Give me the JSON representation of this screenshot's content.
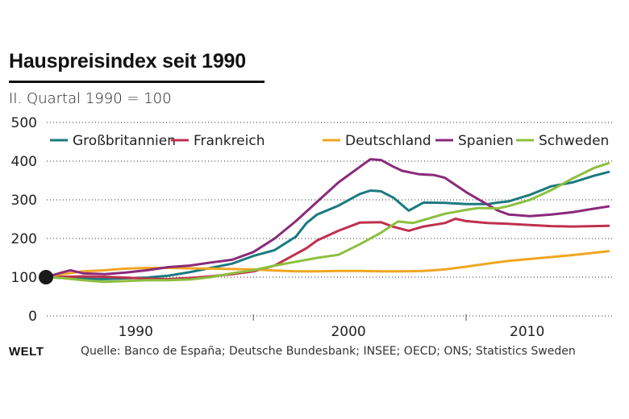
{
  "header": {
    "title": "Hauspreisindex seit 1990",
    "subtitle": "II. Quartal 1990 = 100"
  },
  "footer": {
    "logo": "WELT",
    "source": "Quelle: Banco de España; Deutsche Bundesbank; INSEE; OECD; ONS; Statistics Sweden"
  },
  "chart_data": {
    "type": "line",
    "title": "Hauspreisindex seit 1990",
    "subtitle": "II. Quartal 1990 = 100",
    "xlabel": "",
    "ylabel": "",
    "xlim": [
      1990.25,
      2016.9
    ],
    "ylim": [
      0,
      500
    ],
    "yticks": [
      0,
      100,
      200,
      300,
      400,
      500
    ],
    "ytick_labels": [
      "0",
      "100",
      "200",
      "300",
      "400",
      "500"
    ],
    "xtick_positions": [
      2000,
      2010
    ],
    "xtick_labels": [
      {
        "label": "1990",
        "at": 1995.0
      },
      {
        "label": "2000",
        "at": 2005.0
      },
      {
        "label": "2010",
        "at": 2013.4
      }
    ],
    "grid": "horizontal-dotted",
    "legend": "top",
    "base_point": {
      "x": 1990.25,
      "y": 100
    },
    "series": [
      {
        "name": "Großbritannien",
        "color": "#1a7a80",
        "points": [
          [
            1990.25,
            100
          ],
          [
            1991,
            98
          ],
          [
            1992,
            96
          ],
          [
            1993,
            95
          ],
          [
            1994,
            97
          ],
          [
            1995,
            99
          ],
          [
            1996,
            104
          ],
          [
            1997,
            113
          ],
          [
            1998,
            124
          ],
          [
            1999,
            135
          ],
          [
            2000,
            155
          ],
          [
            2001,
            170
          ],
          [
            2002,
            205
          ],
          [
            2002.5,
            240
          ],
          [
            2003,
            262
          ],
          [
            2004,
            285
          ],
          [
            2005,
            315
          ],
          [
            2005.5,
            324
          ],
          [
            2006,
            322
          ],
          [
            2006.6,
            305
          ],
          [
            2007.3,
            272
          ],
          [
            2008,
            293
          ],
          [
            2009,
            292
          ],
          [
            2010,
            289
          ],
          [
            2011,
            289
          ],
          [
            2011.5,
            293
          ],
          [
            2012,
            296
          ],
          [
            2013,
            313
          ],
          [
            2014,
            335
          ],
          [
            2015,
            345
          ],
          [
            2016,
            362
          ],
          [
            2016.7,
            372
          ]
        ]
      },
      {
        "name": "Frankreich",
        "color": "#c0304e",
        "points": [
          [
            1990.25,
            100
          ],
          [
            1991,
            101
          ],
          [
            1992,
            102
          ],
          [
            1993,
            101
          ],
          [
            1994,
            99
          ],
          [
            1995,
            96
          ],
          [
            1996,
            95
          ],
          [
            1997,
            98
          ],
          [
            1998,
            102
          ],
          [
            1999,
            108
          ],
          [
            2000,
            115
          ],
          [
            2001,
            130
          ],
          [
            2002,
            160
          ],
          [
            2002.5,
            175
          ],
          [
            2003,
            195
          ],
          [
            2004,
            220
          ],
          [
            2005,
            241
          ],
          [
            2006,
            242
          ],
          [
            2006.6,
            230
          ],
          [
            2007.3,
            220
          ],
          [
            2008,
            231
          ],
          [
            2009,
            240
          ],
          [
            2009.5,
            251
          ],
          [
            2010,
            245
          ],
          [
            2011,
            240
          ],
          [
            2012,
            238
          ],
          [
            2013,
            235
          ],
          [
            2014,
            232
          ],
          [
            2015,
            231
          ],
          [
            2016,
            232
          ],
          [
            2016.7,
            233
          ]
        ]
      },
      {
        "name": "Deutschland",
        "color": "#f0a622",
        "points": [
          [
            1990.25,
            100
          ],
          [
            1991,
            108
          ],
          [
            1992,
            115
          ],
          [
            1993,
            118
          ],
          [
            1994,
            122
          ],
          [
            1995,
            124
          ],
          [
            1996,
            124
          ],
          [
            1997,
            123
          ],
          [
            1998,
            122
          ],
          [
            1999,
            121
          ],
          [
            2000,
            120
          ],
          [
            2001,
            117
          ],
          [
            2002,
            115
          ],
          [
            2003,
            115
          ],
          [
            2004,
            116
          ],
          [
            2005,
            116
          ],
          [
            2006,
            115
          ],
          [
            2007,
            115
          ],
          [
            2008,
            116
          ],
          [
            2009,
            120
          ],
          [
            2010,
            127
          ],
          [
            2011,
            135
          ],
          [
            2012,
            142
          ],
          [
            2013,
            147
          ],
          [
            2014,
            152
          ],
          [
            2015,
            157
          ],
          [
            2016,
            163
          ],
          [
            2016.7,
            167
          ]
        ]
      },
      {
        "name": "Spanien",
        "color": "#8a2a7a",
        "points": [
          [
            1990.25,
            100
          ],
          [
            1991,
            112
          ],
          [
            1991.4,
            118
          ],
          [
            1992,
            110
          ],
          [
            1993,
            108
          ],
          [
            1994,
            112
          ],
          [
            1995,
            118
          ],
          [
            1996,
            126
          ],
          [
            1997,
            130
          ],
          [
            1998,
            138
          ],
          [
            1999,
            145
          ],
          [
            2000,
            165
          ],
          [
            2001,
            200
          ],
          [
            2002,
            245
          ],
          [
            2003,
            295
          ],
          [
            2004,
            345
          ],
          [
            2005,
            385
          ],
          [
            2005.5,
            405
          ],
          [
            2006,
            403
          ],
          [
            2006.5,
            388
          ],
          [
            2007,
            375
          ],
          [
            2007.8,
            366
          ],
          [
            2008.5,
            364
          ],
          [
            2009,
            357
          ],
          [
            2010,
            320
          ],
          [
            2011,
            288
          ],
          [
            2011.5,
            272
          ],
          [
            2012,
            262
          ],
          [
            2013,
            258
          ],
          [
            2014,
            262
          ],
          [
            2015,
            268
          ],
          [
            2016,
            277
          ],
          [
            2016.7,
            283
          ]
        ]
      },
      {
        "name": "Schweden",
        "color": "#8cbf3f",
        "points": [
          [
            1990.25,
            100
          ],
          [
            1991,
            98
          ],
          [
            1992,
            92
          ],
          [
            1993,
            88
          ],
          [
            1994,
            90
          ],
          [
            1995,
            92
          ],
          [
            1996,
            92
          ],
          [
            1997,
            94
          ],
          [
            1998,
            100
          ],
          [
            1999,
            110
          ],
          [
            2000,
            118
          ],
          [
            2001,
            130
          ],
          [
            2002,
            140
          ],
          [
            2003,
            150
          ],
          [
            2004,
            158
          ],
          [
            2005,
            185
          ],
          [
            2006,
            215
          ],
          [
            2006.8,
            244
          ],
          [
            2007.5,
            240
          ],
          [
            2008,
            248
          ],
          [
            2009,
            264
          ],
          [
            2010,
            274
          ],
          [
            2010.6,
            279
          ],
          [
            2011.5,
            278
          ],
          [
            2012,
            284
          ],
          [
            2013,
            300
          ],
          [
            2014,
            325
          ],
          [
            2015,
            355
          ],
          [
            2016,
            382
          ],
          [
            2016.7,
            395
          ]
        ]
      }
    ]
  }
}
